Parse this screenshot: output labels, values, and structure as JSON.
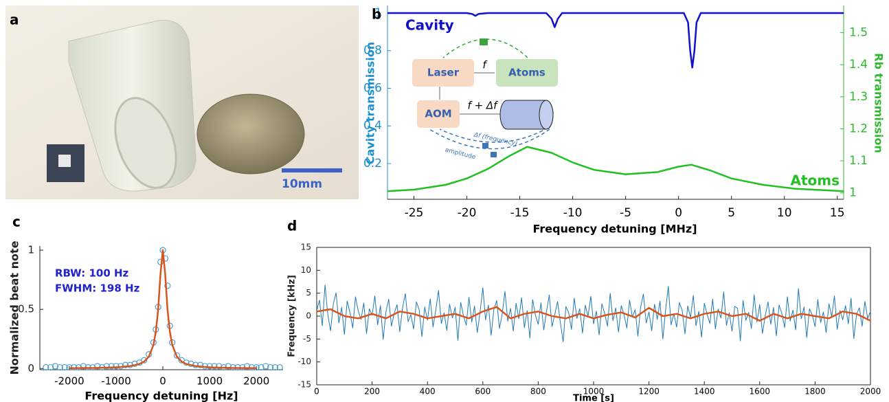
{
  "photo": {
    "panel": "a",
    "scale_bar": "10mm"
  },
  "chart_data": [
    {
      "type": "line",
      "panel": "b",
      "xlabel": "Frequency detuning [MHz]",
      "ylabel": "Cavity transmission",
      "y2label": "Rb transmission",
      "ycolor": "#1a8fd0",
      "y2color": "#2db82d",
      "xlim": [
        -27.5,
        15.6
      ],
      "xticks": [
        -25,
        -20,
        -15,
        -10,
        -5,
        0,
        5,
        10,
        15
      ],
      "ylim": [
        0.01,
        1.04
      ],
      "yticks": [
        0.2,
        0.4,
        0.6,
        0.8,
        1
      ],
      "y2lim": [
        0.98,
        1.585
      ],
      "y2ticks": [
        1,
        1.1,
        1.2,
        1.3,
        1.4,
        1.5
      ],
      "series": [
        {
          "name": "Cavity",
          "color": "#1111cc",
          "x": [
            -27.5,
            -20,
            -19.5,
            -19.2,
            -18.9,
            -18,
            -12.5,
            -12,
            -11.7,
            -11.4,
            -11,
            -5,
            0.5,
            0.9,
            1.1,
            1.3,
            1.5,
            1.7,
            2.1,
            8,
            15.6
          ],
          "values": [
            1,
            1,
            0.995,
            0.985,
            0.995,
            1,
            1,
            0.97,
            0.925,
            0.97,
            1,
            1,
            1,
            0.95,
            0.8,
            0.71,
            0.8,
            0.95,
            1,
            1,
            1
          ]
        },
        {
          "name": "Atoms",
          "color": "#22c022",
          "axis": "y2",
          "x": [
            -27.5,
            -25,
            -22,
            -20,
            -18,
            -16,
            -14.3,
            -12,
            -10,
            -8,
            -5,
            -2,
            0,
            1.2,
            3,
            5,
            8,
            11,
            15.6
          ],
          "values": [
            1.005,
            1.01,
            1.025,
            1.045,
            1.075,
            1.115,
            1.144,
            1.125,
            1.095,
            1.072,
            1.058,
            1.065,
            1.082,
            1.088,
            1.07,
            1.045,
            1.025,
            1.013,
            1.005
          ]
        }
      ],
      "inset": {
        "laser": "Laser",
        "atoms": "Atoms",
        "aom": "AOM",
        "f": "f",
        "f_df": "f + Δf",
        "df": "Δf (frequency)",
        "amplitude": "amplitude"
      }
    },
    {
      "type": "line",
      "panel": "c",
      "xlabel": "Frequency detuning [Hz]",
      "ylabel": "Normalized beat note",
      "xlim": [
        -2630,
        2570
      ],
      "xticks": [
        -2000,
        -1000,
        0,
        1000,
        2000
      ],
      "ylim": [
        -0.01,
        1.035
      ],
      "yticks": [
        0,
        0.5,
        1
      ],
      "annotations": [
        "RBW: 100 Hz",
        "FWHM: 198 Hz"
      ],
      "annotation_color": "#2222cc",
      "series": [
        {
          "color": "#4a9fd0",
          "mode": "markers",
          "x": [
            -2500,
            -2400,
            -2300,
            -2200,
            -2100,
            -2000,
            -1900,
            -1800,
            -1700,
            -1600,
            -1500,
            -1400,
            -1300,
            -1200,
            -1100,
            -1000,
            -900,
            -800,
            -700,
            -600,
            -500,
            -400,
            -300,
            -200,
            -150,
            -100,
            -50,
            0,
            50,
            100,
            150,
            200,
            300,
            400,
            500,
            600,
            700,
            800,
            900,
            1000,
            1100,
            1200,
            1300,
            1400,
            1500,
            1600,
            1700,
            1800,
            1900,
            2000,
            2100,
            2200,
            2300,
            2400,
            2500
          ],
          "values": [
            0.01,
            0.01,
            0.02,
            0.01,
            0.01,
            0.01,
            0.01,
            0.01,
            0.02,
            0.01,
            0.01,
            0.02,
            0.01,
            0.02,
            0.02,
            0.02,
            0.02,
            0.03,
            0.03,
            0.04,
            0.05,
            0.07,
            0.12,
            0.22,
            0.33,
            0.52,
            0.9,
            1,
            0.93,
            0.7,
            0.36,
            0.22,
            0.11,
            0.07,
            0.05,
            0.04,
            0.03,
            0.03,
            0.02,
            0.02,
            0.02,
            0.02,
            0.01,
            0.02,
            0.01,
            0.01,
            0.01,
            0.02,
            0.01,
            0.01,
            0.01,
            0.02,
            0.01,
            0.01,
            0.01
          ]
        },
        {
          "color": "#d9541a",
          "x": [
            -2000,
            -1500,
            -1000,
            -700,
            -500,
            -400,
            -300,
            -200,
            -150,
            -100,
            -50,
            0,
            50,
            100,
            150,
            200,
            300,
            400,
            500,
            700,
            1000,
            1500,
            2000
          ],
          "values": [
            0.0025,
            0.0044,
            0.0099,
            0.02,
            0.038,
            0.059,
            0.1,
            0.2,
            0.31,
            0.5,
            0.8,
            1,
            0.8,
            0.5,
            0.31,
            0.2,
            0.1,
            0.059,
            0.038,
            0.02,
            0.0099,
            0.0044,
            0.0025
          ]
        }
      ]
    },
    {
      "type": "line",
      "panel": "d",
      "xlabel": "Time [s]",
      "ylabel": "Frequency [kHz]",
      "xlim": [
        0,
        2000
      ],
      "xticks": [
        0,
        200,
        400,
        600,
        800,
        1000,
        1200,
        1400,
        1600,
        1800,
        2000
      ],
      "ylim": [
        -15,
        15
      ],
      "yticks": [
        -15,
        -10,
        -5,
        0,
        5,
        10,
        15
      ],
      "x": [
        0,
        10,
        20,
        30,
        40,
        50,
        60,
        70,
        80,
        90,
        100,
        110,
        120,
        130,
        140,
        150,
        160,
        170,
        180,
        190,
        200,
        210,
        220,
        230,
        240,
        250,
        260,
        270,
        280,
        290,
        300,
        310,
        320,
        330,
        340,
        350,
        360,
        370,
        380,
        390,
        400,
        410,
        420,
        430,
        440,
        450,
        460,
        470,
        480,
        490,
        500,
        510,
        520,
        530,
        540,
        550,
        560,
        570,
        580,
        590,
        600,
        610,
        620,
        630,
        640,
        650,
        660,
        670,
        680,
        690,
        700,
        710,
        720,
        730,
        740,
        750,
        760,
        770,
        780,
        790,
        800,
        810,
        820,
        830,
        840,
        850,
        860,
        870,
        880,
        890,
        900,
        910,
        920,
        930,
        940,
        950,
        960,
        970,
        980,
        990,
        1000,
        1010,
        1020,
        1030,
        1040,
        1050,
        1060,
        1070,
        1080,
        1090,
        1100,
        1110,
        1120,
        1130,
        1140,
        1150,
        1160,
        1170,
        1180,
        1190,
        1200,
        1210,
        1220,
        1230,
        1240,
        1250,
        1260,
        1270,
        1280,
        1290,
        1300,
        1310,
        1320,
        1330,
        1340,
        1350,
        1360,
        1370,
        1380,
        1390,
        1400,
        1410,
        1420,
        1430,
        1440,
        1450,
        1460,
        1470,
        1480,
        1490,
        1500,
        1510,
        1520,
        1530,
        1540,
        1550,
        1560,
        1570,
        1580,
        1590,
        1600,
        1610,
        1620,
        1630,
        1640,
        1650,
        1660,
        1670,
        1680,
        1690,
        1700,
        1710,
        1720,
        1730,
        1740,
        1750,
        1760,
        1770,
        1780,
        1790,
        1800,
        1810,
        1820,
        1830,
        1840,
        1850,
        1860,
        1870,
        1880,
        1890,
        1900,
        1910,
        1920,
        1930,
        1940,
        1950,
        1960,
        1970,
        1980,
        1990,
        2000
      ],
      "series": [
        {
          "color": "#1f77b4",
          "width": 1,
          "values": [
            1.2,
            3.5,
            -2.1,
            6.8,
            0.4,
            -3.2,
            2.7,
            5.1,
            -1.5,
            1.9,
            -4.0,
            3.3,
            0.8,
            -2.6,
            4.2,
            1.1,
            -0.7,
            2.9,
            -3.8,
            1.6,
            0.2,
            4.4,
            -1.9,
            2.3,
            -5.1,
            1.0,
            3.7,
            -2.2,
            0.6,
            2.5,
            -3.4,
            1.8,
            4.9,
            -1.2,
            0.3,
            -2.8,
            3.1,
            1.4,
            -4.5,
            2.0,
            -0.9,
            3.8,
            -2.4,
            1.3,
            5.6,
            -1.6,
            0.7,
            -3.1,
            2.6,
            -0.4,
            1.9,
            -5.3,
            3.0,
            0.1,
            -2.0,
            4.1,
            -1.3,
            2.2,
            -3.6,
            0.9,
            6.2,
            -0.8,
            2.4,
            -4.2,
            1.5,
            3.4,
            -2.7,
            0.5,
            5.4,
            -1.1,
            1.7,
            -3.3,
            2.8,
            -0.6,
            4.0,
            -2.5,
            1.2,
            -4.8,
            3.6,
            0.2,
            -1.8,
            2.9,
            -3.0,
            1.0,
            4.6,
            -2.3,
            0.4,
            3.2,
            -1.4,
            -5.6,
            2.1,
            0.8,
            -2.9,
            3.9,
            -0.5,
            1.6,
            -3.7,
            2.4,
            0,
            4.3,
            -1.7,
            1.1,
            -4.1,
            2.7,
            0.6,
            -2.2,
            5.0,
            -1.0,
            1.8,
            -3.5,
            2.3,
            0.3,
            -2.6,
            3.5,
            -0.2,
            1.4,
            -4.4,
            2.0,
            4.8,
            -1.5,
            0.9,
            -3.2,
            2.6,
            -0.7,
            3.3,
            -5.0,
            1.3,
            6.5,
            -1.9,
            0.5,
            -2.4,
            3.0,
            1.2,
            -3.9,
            2.2,
            -0.3,
            4.5,
            -2.1,
            1.0,
            -4.6,
            2.8,
            0.4,
            -1.6,
            3.7,
            -2.8,
            1.5,
            -0.4,
            5.3,
            -2.0,
            0.7,
            -3.3,
            2.1,
            1.7,
            -5.4,
            3.4,
            -0.9,
            0.8,
            -2.7,
            4.7,
            -1.3,
            2.5,
            -3.8,
            0.1,
            3.1,
            -1.8,
            1.9,
            -4.3,
            2.4,
            0.6,
            -2.5,
            4.2,
            -1.1,
            1.3,
            -3.0,
            6.0,
            -0.6,
            2.0,
            -4.7,
            1.6,
            0.2,
            -2.3,
            3.6,
            -1.4,
            0.9,
            -3.6,
            2.7,
            -0.1,
            4.4,
            -2.9,
            1.2,
            -0.8,
            2.3,
            -1.7,
            3.9,
            -4.9,
            0.5,
            1.8,
            -2.2,
            3.2,
            -0.5,
            1.0
          ]
        },
        {
          "color": "#d9541a",
          "width": 2.5,
          "x": [
            0,
            50,
            100,
            150,
            200,
            250,
            300,
            350,
            400,
            450,
            500,
            550,
            600,
            650,
            700,
            750,
            800,
            850,
            900,
            950,
            1000,
            1050,
            1100,
            1150,
            1200,
            1250,
            1300,
            1350,
            1400,
            1450,
            1500,
            1550,
            1600,
            1650,
            1700,
            1750,
            1800,
            1850,
            1900,
            1950,
            2000
          ],
          "values": [
            1,
            1.5,
            0,
            -0.5,
            0.5,
            -0.5,
            1,
            0.5,
            -0.5,
            0,
            0.5,
            -0.5,
            1,
            2,
            -0.5,
            0.5,
            1,
            0,
            -0.5,
            0.5,
            -0.5,
            0.3,
            0.8,
            -0.3,
            1.8,
            0,
            0.5,
            -0.5,
            0.5,
            1,
            0,
            0.5,
            -1,
            0.5,
            -0.5,
            0.5,
            0,
            -0.5,
            1,
            0.5,
            -1
          ]
        }
      ]
    }
  ]
}
